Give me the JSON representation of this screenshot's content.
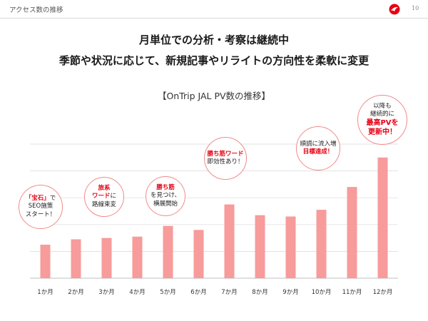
{
  "header": {
    "title": "アクセス数の推移",
    "page_number": "10"
  },
  "headline": {
    "line1": "月単位での分析・考察は継続中",
    "line2": "季節や状況に応じて、新規記事やリライトの方向性を柔軟に変更"
  },
  "colors": {
    "bar": "#f79b9b",
    "accent": "#e60012",
    "callout_border": "#f28a8a",
    "grid": "#d9d9d9"
  },
  "brand_icon": "crane-logo-icon",
  "chart_data": {
    "type": "bar",
    "title": "【OnTrip JAL PV数の推移】",
    "categories": [
      "1か月",
      "2か月",
      "3か月",
      "4か月",
      "5か月",
      "6か月",
      "7か月",
      "8か月",
      "9か月",
      "10か月",
      "11か月",
      "12か月"
    ],
    "values": [
      0.25,
      0.29,
      0.3,
      0.31,
      0.39,
      0.36,
      0.55,
      0.47,
      0.46,
      0.51,
      0.68,
      0.9
    ],
    "ylim": [
      0,
      1
    ],
    "y_tick_labels": false,
    "grid": true,
    "annotations": [
      {
        "category": "1か月",
        "lines": [
          {
            "a": "「宝石」",
            "b": "で"
          },
          {
            "a": "",
            "b": "SEO施策"
          },
          {
            "a": "",
            "b": "スタート！"
          }
        ]
      },
      {
        "category": "3か月",
        "lines": [
          {
            "a": "旅系",
            "b": ""
          },
          {
            "a": "ワード",
            "b": "に"
          },
          {
            "a": "",
            "b": "路線束変"
          }
        ]
      },
      {
        "category": "5か月",
        "lines": [
          {
            "a": "勝ち筋",
            "b": ""
          },
          {
            "a": "",
            "b": "を見つけ、"
          },
          {
            "a": "",
            "b": "横展開始"
          }
        ]
      },
      {
        "category": "7か月",
        "lines": [
          {
            "a": "勝ち筋ワード",
            "b": ""
          },
          {
            "a": "",
            "b": "即効性あり！"
          }
        ]
      },
      {
        "category": "10か月",
        "lines": [
          {
            "a": "",
            "b": "順調に流入増"
          },
          {
            "a": "目標達成！",
            "b": ""
          }
        ]
      },
      {
        "category": "12か月",
        "lines": [
          {
            "a": "",
            "b": "以降も"
          },
          {
            "a": "",
            "b": "継続的に"
          },
          {
            "a": "最高PVを",
            "b": ""
          },
          {
            "a": "更新中！",
            "b": ""
          }
        ]
      }
    ]
  }
}
